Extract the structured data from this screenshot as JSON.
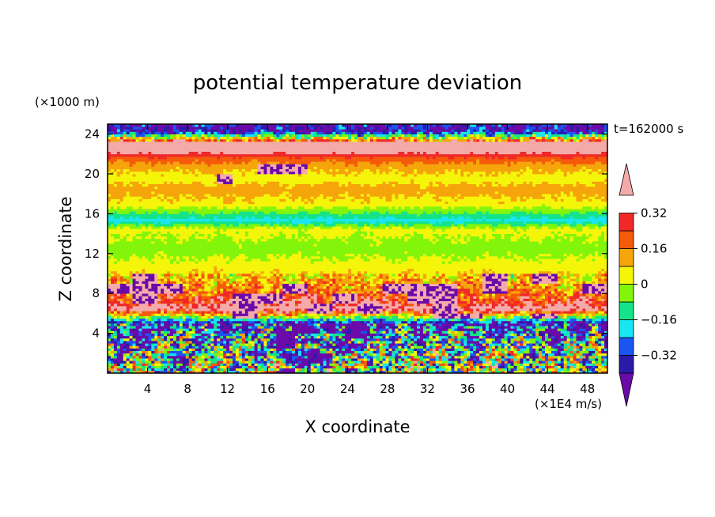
{
  "chart_data": {
    "type": "heatmap",
    "title": "potential temperature deviation",
    "xlabel": "X coordinate",
    "ylabel": "Z coordinate",
    "x_unit": "(×1E4 m/s)",
    "y_unit": "(×1000 m)",
    "time_label": "t=162000 s",
    "xlim": [
      0,
      50
    ],
    "ylim": [
      0,
      25
    ],
    "x_ticks": [
      4,
      8,
      12,
      16,
      20,
      24,
      28,
      32,
      36,
      40,
      44,
      48
    ],
    "y_ticks": [
      4,
      8,
      12,
      16,
      20,
      24
    ],
    "colorbar": {
      "levels": [
        -0.4,
        -0.32,
        -0.24,
        -0.16,
        -0.08,
        0,
        0.08,
        0.16,
        0.24,
        0.32,
        0.4
      ],
      "tick_values": [
        0.32,
        0.16,
        0,
        -0.16,
        -0.32
      ],
      "tick_labels": [
        "0.32",
        "0.16",
        "0",
        "−0.16",
        "−0.32"
      ],
      "colors": [
        "#6a0aa8",
        "#2a1aa8",
        "#1a55f0",
        "#19e6f2",
        "#14e38a",
        "#82f50a",
        "#f5f50a",
        "#f5a50a",
        "#f55a0a",
        "#f02828",
        "#f5aaaa"
      ],
      "extend": "both"
    },
    "horizontal_profile": [
      {
        "z": 0.5,
        "value": -0.05
      },
      {
        "z": 3,
        "value": -0.2
      },
      {
        "z": 5,
        "value": -0.38
      },
      {
        "z": 6.5,
        "value": 0.42
      },
      {
        "z": 7.2,
        "value": 0.27
      },
      {
        "z": 8,
        "value": 0.19
      },
      {
        "z": 9,
        "value": 0.12
      },
      {
        "z": 10.5,
        "value": 0.05
      },
      {
        "z": 12.5,
        "value": -0.04
      },
      {
        "z": 14.5,
        "value": 0.03
      },
      {
        "z": 15.3,
        "value": -0.2
      },
      {
        "z": 15.8,
        "value": -0.12
      },
      {
        "z": 17,
        "value": 0.05
      },
      {
        "z": 18.5,
        "value": 0.12
      },
      {
        "z": 19.5,
        "value": 0.04
      },
      {
        "z": 20.5,
        "value": 0.1
      },
      {
        "z": 21.5,
        "value": 0.2
      },
      {
        "z": 22.2,
        "value": 0.35
      },
      {
        "z": 23,
        "value": 0.44
      },
      {
        "z": 24.3,
        "value": -0.4
      }
    ]
  }
}
